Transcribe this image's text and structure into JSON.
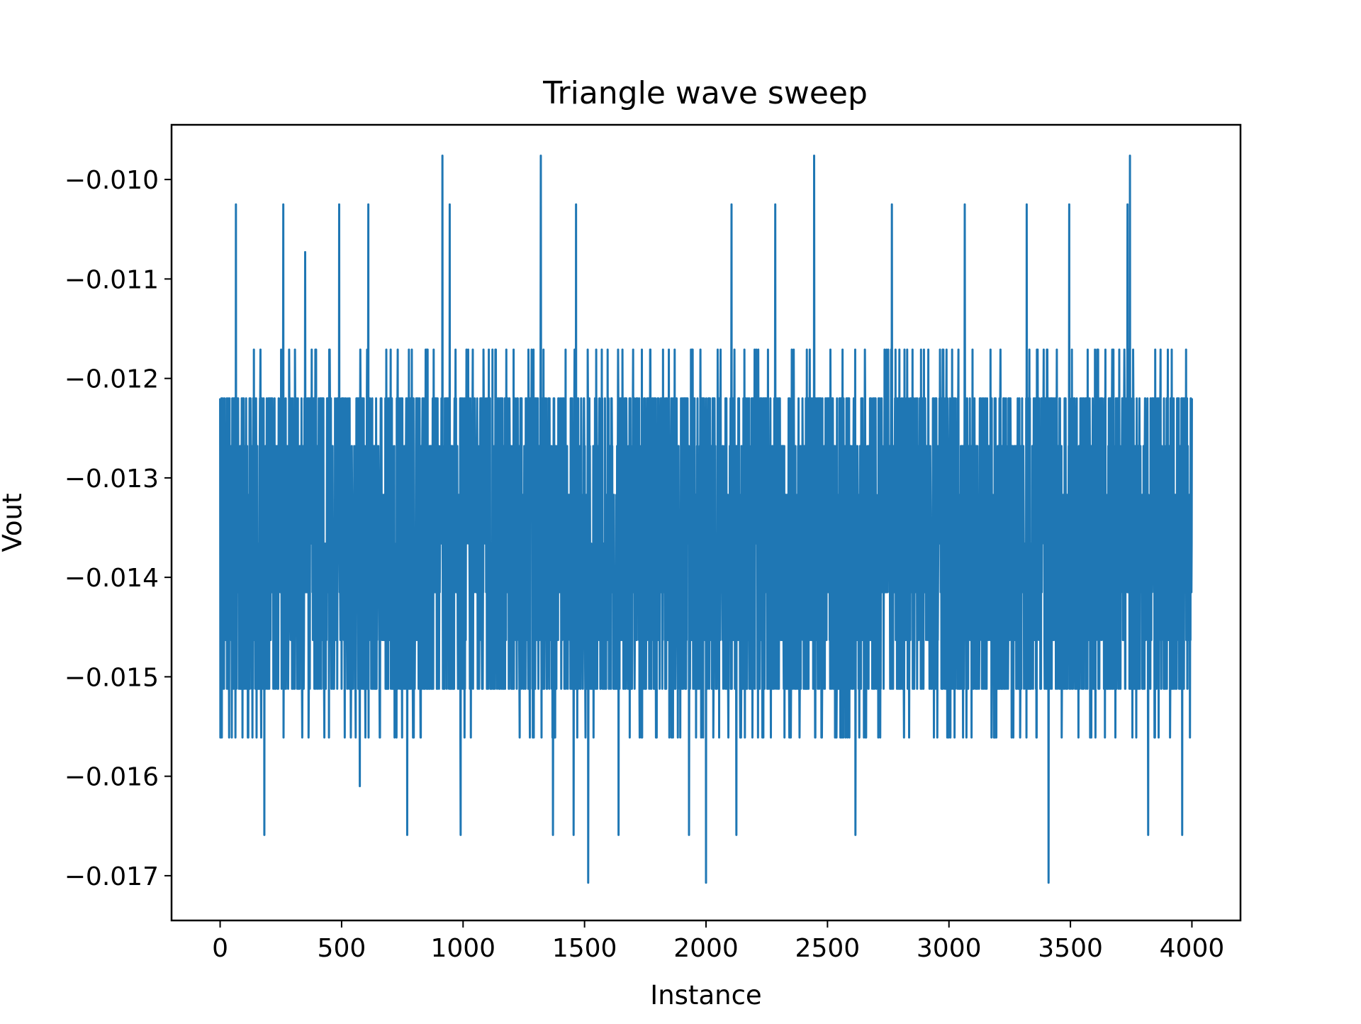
{
  "chart_data": {
    "type": "line",
    "title": "Triangle wave sweep",
    "xlabel": "Instance",
    "ylabel": "Vout",
    "xlim": [
      -200,
      4200
    ],
    "ylim": [
      -0.01745,
      -0.00945
    ],
    "x_ticks": [
      0,
      500,
      1000,
      1500,
      2000,
      2500,
      3000,
      3500,
      4000
    ],
    "x_tick_labels": [
      "0",
      "500",
      "1000",
      "1500",
      "2000",
      "2500",
      "3000",
      "3500",
      "4000"
    ],
    "y_ticks": [
      -0.01,
      -0.011,
      -0.012,
      -0.013,
      -0.014,
      -0.015,
      -0.016,
      -0.017
    ],
    "y_tick_labels": [
      "−0.010",
      "−0.011",
      "−0.012",
      "−0.013",
      "−0.014",
      "−0.015",
      "−0.016",
      "−0.017"
    ],
    "grid": false,
    "series": [
      {
        "color": "#1f77b4",
        "x_start": 0,
        "x_end": 4000,
        "levels": [
          -0.00976,
          -0.01025,
          -0.01073,
          -0.01122,
          -0.01171,
          -0.0122,
          -0.01268,
          -0.01317,
          -0.01366,
          -0.01415,
          -0.01463,
          -0.01512,
          -0.01561,
          -0.0161,
          -0.01659,
          -0.01707
        ],
        "spikes": [
          {
            "x": 65,
            "y": -0.01025
          },
          {
            "x": 182,
            "y": -0.01659
          },
          {
            "x": 260,
            "y": -0.01025
          },
          {
            "x": 350,
            "y": -0.01073
          },
          {
            "x": 490,
            "y": -0.01025
          },
          {
            "x": 575,
            "y": -0.0161
          },
          {
            "x": 610,
            "y": -0.01025
          },
          {
            "x": 770,
            "y": -0.01659
          },
          {
            "x": 915,
            "y": -0.00976
          },
          {
            "x": 945,
            "y": -0.01025
          },
          {
            "x": 990,
            "y": -0.01659
          },
          {
            "x": 1320,
            "y": -0.00976
          },
          {
            "x": 1370,
            "y": -0.01659
          },
          {
            "x": 1455,
            "y": -0.01659
          },
          {
            "x": 1465,
            "y": -0.01025
          },
          {
            "x": 1515,
            "y": -0.01707
          },
          {
            "x": 1640,
            "y": -0.01659
          },
          {
            "x": 1930,
            "y": -0.01659
          },
          {
            "x": 2000,
            "y": -0.01707
          },
          {
            "x": 2105,
            "y": -0.01025
          },
          {
            "x": 2125,
            "y": -0.01659
          },
          {
            "x": 2285,
            "y": -0.01025
          },
          {
            "x": 2445,
            "y": -0.00976
          },
          {
            "x": 2615,
            "y": -0.01659
          },
          {
            "x": 2765,
            "y": -0.01025
          },
          {
            "x": 3065,
            "y": -0.01025
          },
          {
            "x": 3320,
            "y": -0.01025
          },
          {
            "x": 3410,
            "y": -0.01707
          },
          {
            "x": 3495,
            "y": -0.01025
          },
          {
            "x": 3735,
            "y": -0.01025
          },
          {
            "x": 3745,
            "y": -0.00976
          },
          {
            "x": 3820,
            "y": -0.01659
          },
          {
            "x": 3960,
            "y": -0.01659
          }
        ]
      }
    ]
  }
}
